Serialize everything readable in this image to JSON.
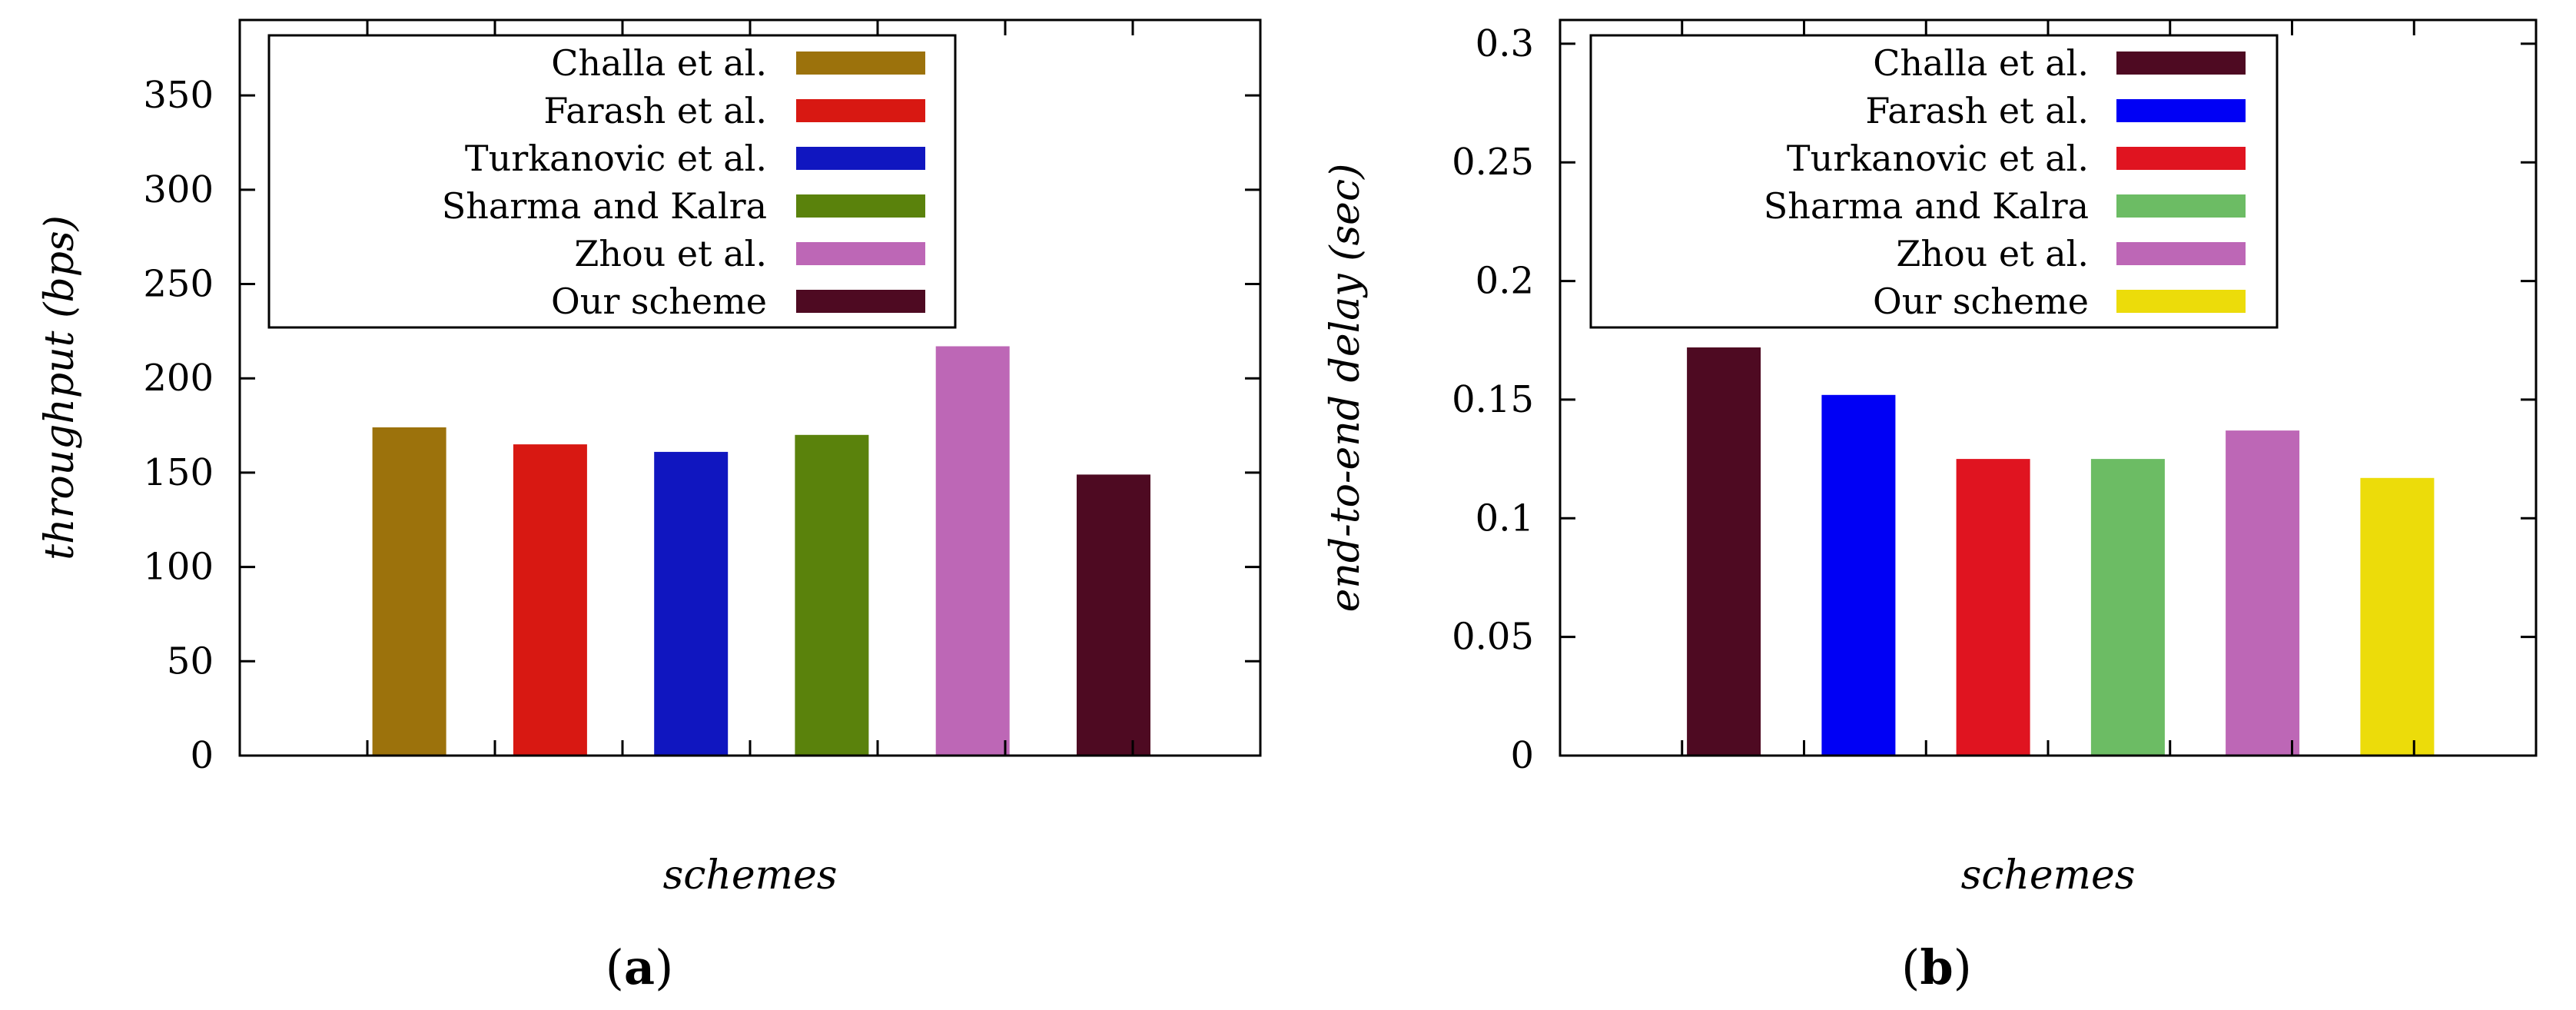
{
  "chart_data": [
    {
      "type": "bar",
      "panel": "a",
      "caption": {
        "open": "(",
        "letter": "a",
        "close": ")"
      },
      "xlabel": "schemes",
      "ylabel": "throughput (bps)",
      "ylim": [
        0,
        390
      ],
      "yticks": [
        0,
        50,
        100,
        150,
        200,
        250,
        300,
        350
      ],
      "ytick_labels": [
        "0",
        "50",
        "100",
        "150",
        "200",
        "250",
        "300",
        "350"
      ],
      "categories": [
        "Challa et al.",
        "Farash et al.",
        "Turkanovic et al.",
        "Sharma and Kalra",
        "Zhou et al.",
        "Our scheme"
      ],
      "values": [
        174,
        165,
        161,
        170,
        217,
        149
      ],
      "colors": [
        "#9c720c",
        "#d81812",
        "#1016c0",
        "#5a820c",
        "#bd67b6",
        "#4e0a22"
      ],
      "legend_position": "top-left"
    },
    {
      "type": "bar",
      "panel": "b",
      "caption": {
        "open": "(",
        "letter": "b",
        "close": ")"
      },
      "xlabel": "schemes",
      "ylabel": "end-to-end delay (sec)",
      "ylim": [
        0,
        0.31
      ],
      "yticks": [
        0,
        0.05,
        0.1,
        0.15,
        0.2,
        0.25,
        0.3
      ],
      "ytick_labels": [
        "0",
        "0.05",
        "0.1",
        "0.15",
        "0.2",
        "0.25",
        "0.3"
      ],
      "categories": [
        "Challa et al.",
        "Farash et al.",
        "Turkanovic et al.",
        "Sharma and Kalra",
        "Zhou et al.",
        "Our scheme"
      ],
      "values": [
        0.172,
        0.152,
        0.125,
        0.125,
        0.137,
        0.117
      ],
      "colors": [
        "#4e0a22",
        "#0000f5",
        "#e01420",
        "#6cbc64",
        "#bd67b6",
        "#ecdc0a"
      ],
      "legend_position": "top-left"
    }
  ]
}
